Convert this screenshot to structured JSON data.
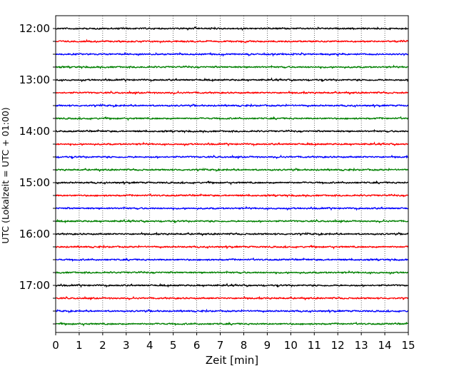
{
  "chart_data": {
    "type": "line",
    "title": "",
    "xlabel": "Zeit  [min]",
    "ylabel": "UTC (Lokalzeit = UTC + 01:00)",
    "xlim": [
      0,
      15
    ],
    "x_ticks": [
      "0",
      "1",
      "2",
      "3",
      "4",
      "5",
      "6",
      "7",
      "8",
      "9",
      "10",
      "11",
      "12",
      "13",
      "14",
      "15"
    ],
    "y_tick_labels": [
      "12:00",
      "13:00",
      "14:00",
      "15:00",
      "16:00",
      "17:00"
    ],
    "trace_interval_min": 15,
    "trace_starts": [
      "12:00",
      "12:15",
      "12:30",
      "12:45",
      "13:00",
      "13:15",
      "13:30",
      "13:45",
      "14:00",
      "14:15",
      "14:30",
      "14:45",
      "15:00",
      "15:15",
      "15:30",
      "15:45",
      "16:00",
      "16:15",
      "16:30",
      "16:45",
      "17:00",
      "17:15",
      "17:30",
      "17:45"
    ],
    "trace_colors": [
      "#000000",
      "#ff0000",
      "#0000ff",
      "#008000"
    ],
    "vertical_grid": true,
    "grid_style": "dotted"
  }
}
